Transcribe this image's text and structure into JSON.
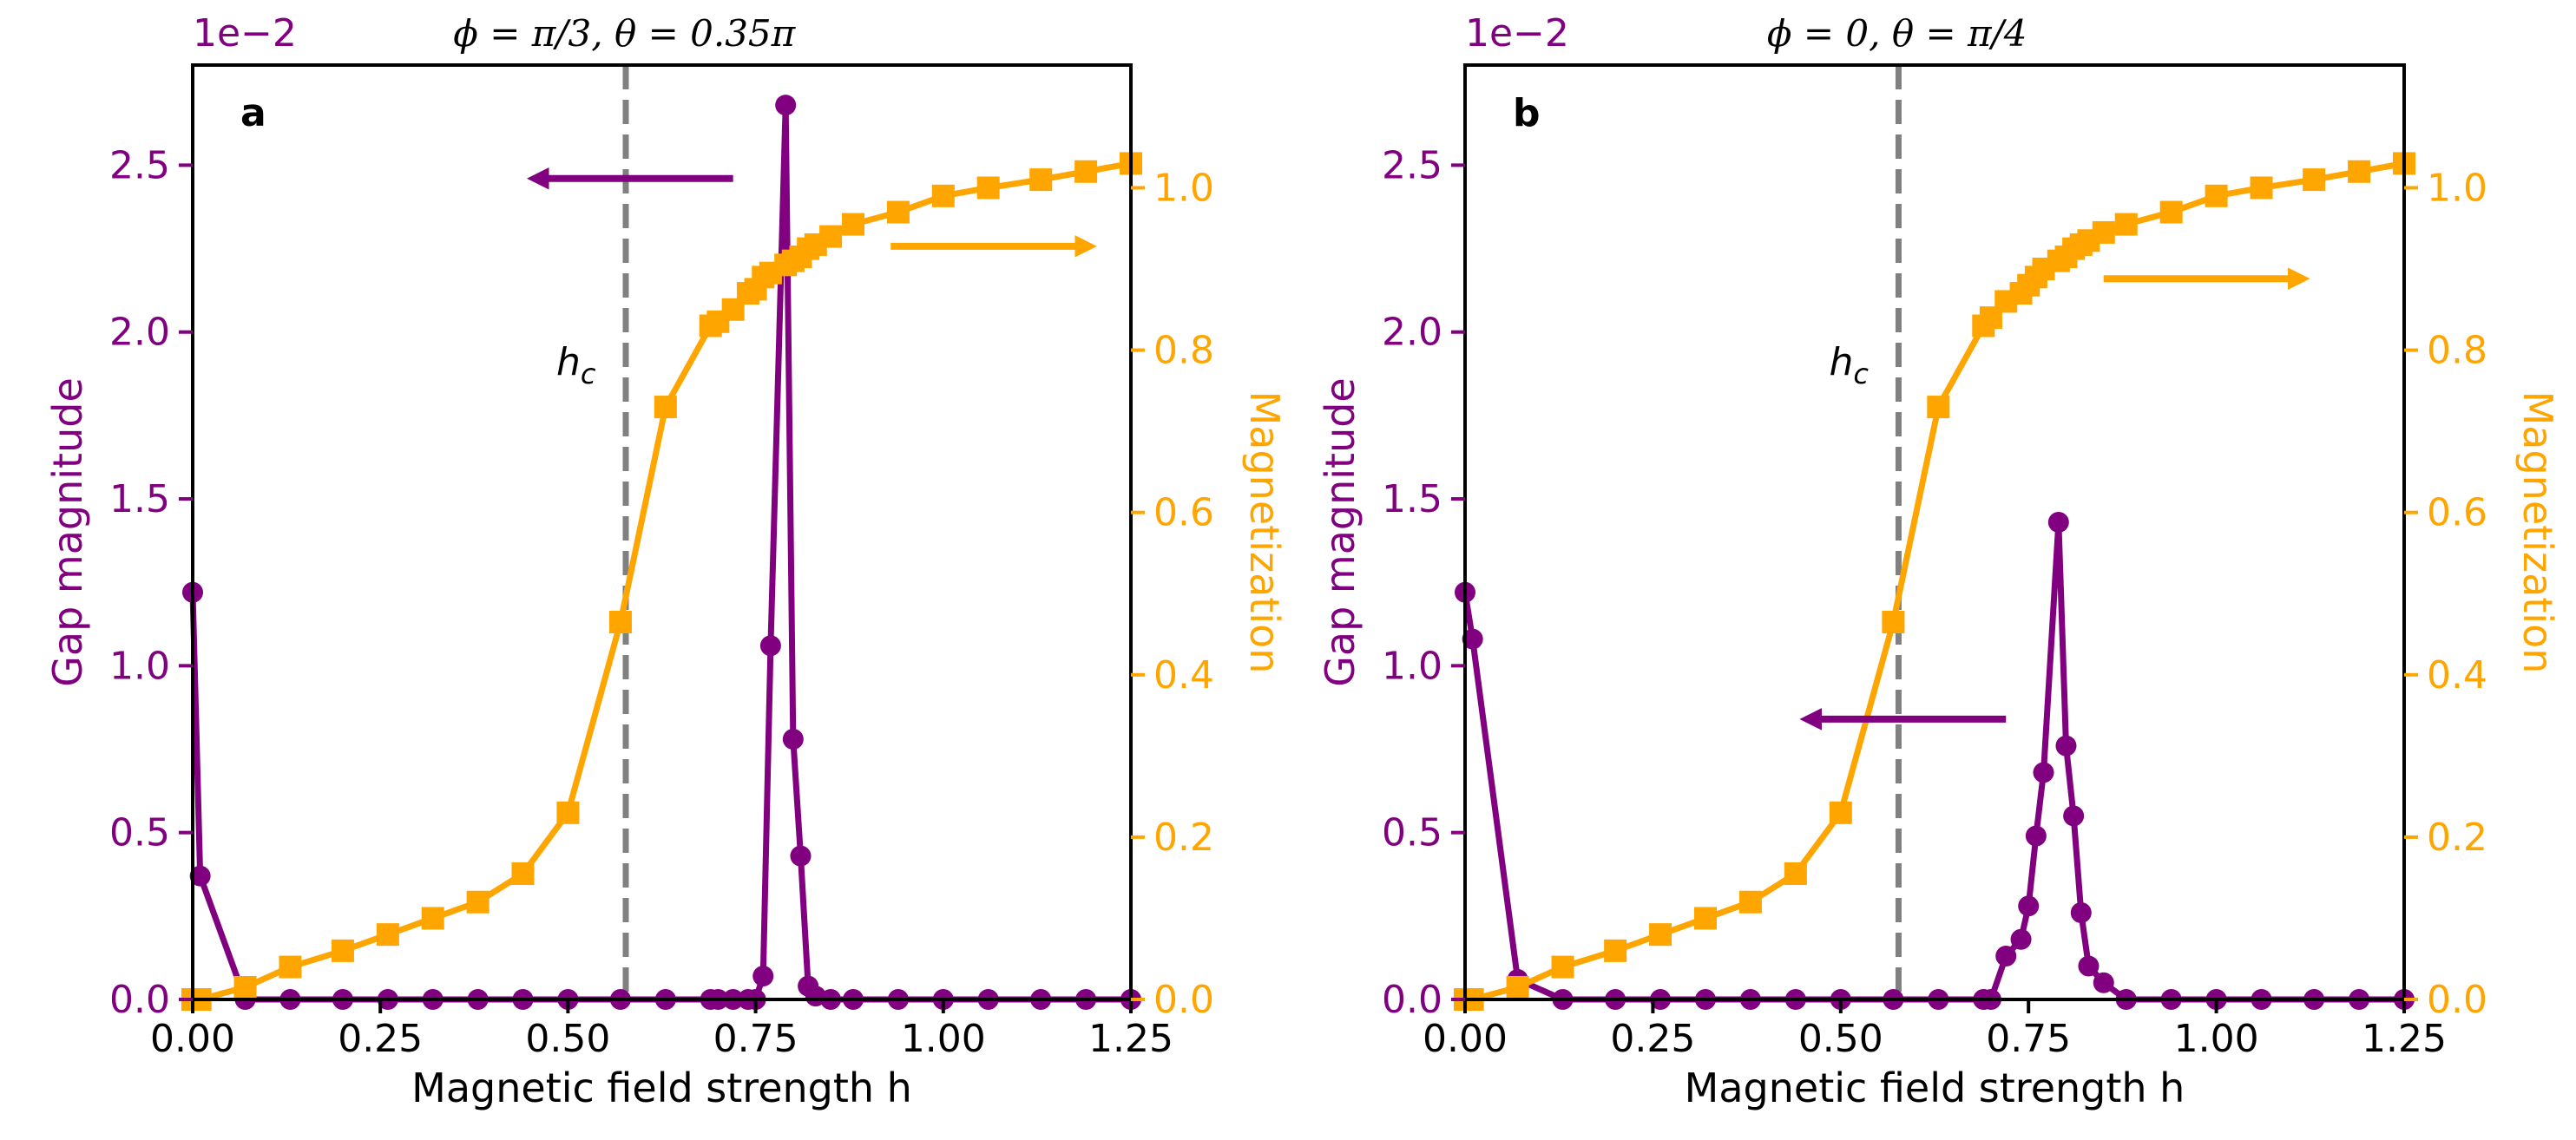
{
  "colors": {
    "gap": "#800080",
    "magnetization": "#FFA500",
    "hc_line": "#808080",
    "axis": "#000000"
  },
  "chart_data": [
    {
      "type": "line",
      "panel_label": "a",
      "title": "ϕ = π/3, θ = 0.35π",
      "xlabel": "Magnetic field strength h",
      "ylabel_left": "Gap magnitude",
      "ylabel_right": "Magnetization",
      "left_offset_label": "1e−2",
      "xlim": [
        0,
        1.25
      ],
      "ylim_left": [
        0,
        2.8
      ],
      "ylim_right": [
        0,
        1.1512
      ],
      "x_ticks": [
        "0.00",
        "0.25",
        "0.50",
        "0.75",
        "1.00",
        "1.25"
      ],
      "y_ticks_left": [
        "0.0",
        "0.5",
        "1.0",
        "1.5",
        "2.0",
        "2.5"
      ],
      "y_ticks_right": [
        "0.0",
        "0.2",
        "0.4",
        "0.6",
        "0.8",
        "1.0"
      ],
      "hc": 0.577,
      "hc_label": "h_c",
      "arrows": [
        {
          "axis": "left",
          "direction": "left",
          "x_from": 0.72,
          "x_to": 0.46,
          "y": 2.46
        },
        {
          "axis": "right",
          "direction": "right",
          "x_from": 0.93,
          "x_to": 1.19,
          "y": 0.928
        }
      ],
      "series": [
        {
          "name": "Gap magnitude",
          "axis": "left",
          "marker": "circle",
          "x": [
            0.0,
            0.01,
            0.07,
            0.13,
            0.2,
            0.26,
            0.32,
            0.38,
            0.44,
            0.5,
            0.57,
            0.63,
            0.69,
            0.7,
            0.72,
            0.74,
            0.75,
            0.76,
            0.77,
            0.79,
            0.8,
            0.81,
            0.82,
            0.83,
            0.85,
            0.88,
            0.94,
            1.0,
            1.06,
            1.13,
            1.19,
            1.25
          ],
          "values": [
            1.22,
            0.37,
            0.0,
            0.0,
            0.0,
            0.0,
            0.0,
            0.0,
            0.0,
            0.0,
            0.0,
            0.0,
            0.0,
            0.0,
            0.0,
            0.0,
            0.0,
            0.07,
            1.06,
            2.68,
            0.78,
            0.43,
            0.04,
            0.01,
            0.0,
            0.0,
            0.0,
            0.0,
            0.0,
            0.0,
            0.0,
            0.0
          ]
        },
        {
          "name": "Magnetization",
          "axis": "right",
          "marker": "square",
          "x": [
            0.0,
            0.01,
            0.07,
            0.13,
            0.2,
            0.26,
            0.32,
            0.38,
            0.44,
            0.5,
            0.57,
            0.63,
            0.69,
            0.7,
            0.72,
            0.74,
            0.75,
            0.76,
            0.77,
            0.79,
            0.8,
            0.81,
            0.82,
            0.83,
            0.85,
            0.88,
            0.94,
            1.0,
            1.06,
            1.13,
            1.19,
            1.25
          ],
          "values": [
            0.0,
            0.0,
            0.015,
            0.04,
            0.06,
            0.08,
            0.1,
            0.12,
            0.155,
            0.23,
            0.465,
            0.73,
            0.83,
            0.835,
            0.85,
            0.87,
            0.875,
            0.89,
            0.895,
            0.905,
            0.91,
            0.915,
            0.925,
            0.93,
            0.94,
            0.955,
            0.97,
            0.99,
            1.0,
            1.01,
            1.02,
            1.03
          ]
        }
      ]
    },
    {
      "type": "line",
      "panel_label": "b",
      "title": "ϕ = 0, θ = π/4",
      "xlabel": "Magnetic field strength h",
      "ylabel_left": "Gap magnitude",
      "ylabel_right": "Magnetization",
      "left_offset_label": "1e−2",
      "xlim": [
        0,
        1.25
      ],
      "ylim_left": [
        0,
        2.8
      ],
      "ylim_right": [
        0,
        1.1512
      ],
      "x_ticks": [
        "0.00",
        "0.25",
        "0.50",
        "0.75",
        "1.00",
        "1.25"
      ],
      "y_ticks_left": [
        "0.0",
        "0.5",
        "1.0",
        "1.5",
        "2.0",
        "2.5"
      ],
      "y_ticks_right": [
        "0.0",
        "0.2",
        "0.4",
        "0.6",
        "0.8",
        "1.0"
      ],
      "hc": 0.577,
      "hc_label": "h_c",
      "arrows": [
        {
          "axis": "left",
          "direction": "left",
          "x_from": 0.72,
          "x_to": 0.46,
          "y": 0.84
        },
        {
          "axis": "right",
          "direction": "right",
          "x_from": 0.85,
          "x_to": 1.11,
          "y": 0.888
        }
      ],
      "series": [
        {
          "name": "Gap magnitude",
          "axis": "left",
          "marker": "circle",
          "x": [
            0.0,
            0.01,
            0.07,
            0.13,
            0.2,
            0.26,
            0.32,
            0.38,
            0.44,
            0.5,
            0.57,
            0.63,
            0.69,
            0.7,
            0.72,
            0.74,
            0.75,
            0.76,
            0.77,
            0.79,
            0.8,
            0.81,
            0.82,
            0.83,
            0.85,
            0.88,
            0.94,
            1.0,
            1.06,
            1.13,
            1.19,
            1.25
          ],
          "values": [
            1.22,
            1.08,
            0.06,
            0.0,
            0.0,
            0.0,
            0.0,
            0.0,
            0.0,
            0.0,
            0.0,
            0.0,
            0.0,
            0.0,
            0.13,
            0.18,
            0.28,
            0.49,
            0.68,
            1.43,
            0.76,
            0.55,
            0.26,
            0.1,
            0.05,
            0.0,
            0.0,
            0.0,
            0.0,
            0.0,
            0.0,
            0.0
          ]
        },
        {
          "name": "Magnetization",
          "axis": "right",
          "marker": "square",
          "x": [
            0.0,
            0.01,
            0.07,
            0.13,
            0.2,
            0.26,
            0.32,
            0.38,
            0.44,
            0.5,
            0.57,
            0.63,
            0.69,
            0.7,
            0.72,
            0.74,
            0.75,
            0.76,
            0.77,
            0.79,
            0.8,
            0.81,
            0.82,
            0.83,
            0.85,
            0.88,
            0.94,
            1.0,
            1.06,
            1.13,
            1.19,
            1.25
          ],
          "values": [
            0.0,
            0.0,
            0.015,
            0.04,
            0.06,
            0.08,
            0.1,
            0.12,
            0.155,
            0.23,
            0.465,
            0.73,
            0.83,
            0.84,
            0.86,
            0.87,
            0.88,
            0.89,
            0.9,
            0.91,
            0.915,
            0.925,
            0.93,
            0.935,
            0.945,
            0.955,
            0.97,
            0.99,
            1.0,
            1.01,
            1.02,
            1.03
          ]
        }
      ]
    }
  ]
}
